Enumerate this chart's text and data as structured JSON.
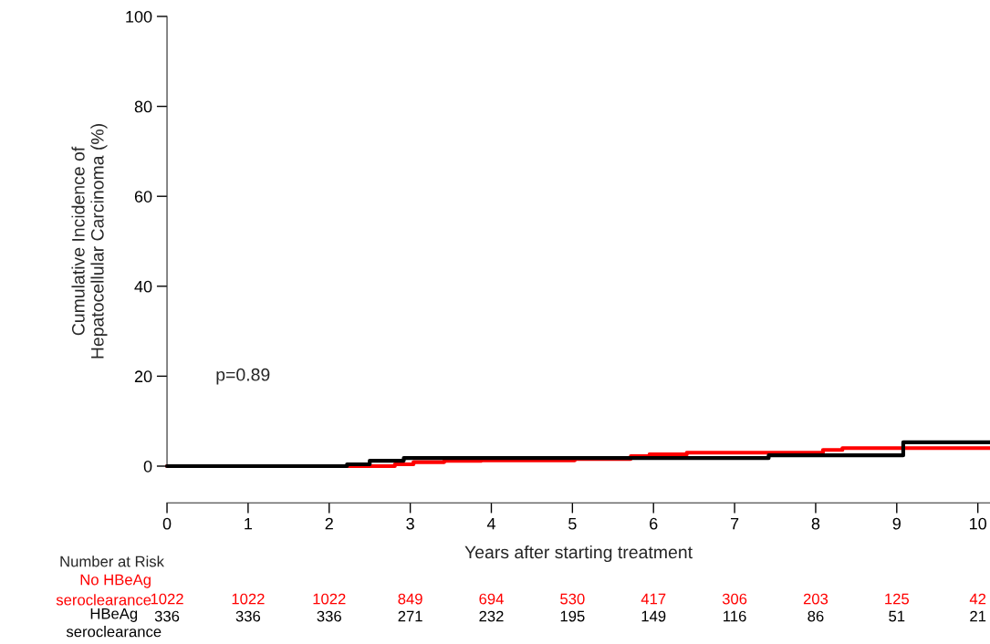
{
  "chart_data": {
    "type": "step",
    "xlabel": "Years after starting treatment",
    "ylabel": "Cumulative Incidence of\nHepatocellular Carcinoma (%)",
    "xlim": [
      0,
      10.15
    ],
    "ylim": [
      0,
      100
    ],
    "xticks": [
      0,
      1,
      2,
      3,
      4,
      5,
      6,
      7,
      8,
      9,
      10
    ],
    "yticks": [
      0,
      20,
      40,
      60,
      80,
      100
    ],
    "grid": false,
    "legend": false,
    "marker": "none",
    "line_style": "solid",
    "series": [
      {
        "color": "#ff0000",
        "x": [
          0,
          2.81,
          3.04,
          3.42,
          3.88,
          5.03,
          5.72,
          5.95,
          6.41,
          8.09,
          8.33,
          10.15
        ],
        "values": [
          0,
          0.4,
          0.9,
          1.2,
          1.3,
          1.6,
          2.2,
          2.6,
          3.0,
          3.6,
          4.0,
          4.0
        ]
      },
      {
        "color": "#000000",
        "x": [
          0,
          2.22,
          2.5,
          2.92,
          7.42,
          9.08,
          10.15
        ],
        "values": [
          0,
          0.4,
          1.2,
          1.8,
          2.4,
          5.3,
          5.3
        ]
      }
    ],
    "annotations": [
      "Number at Risk",
      "p=0.89",
      "No HBeAg\nseroclearance",
      "HBeAg\nseroclearance",
      "1022",
      "1022",
      "1022",
      "849",
      "694",
      "530",
      "417",
      "306",
      "203",
      "125",
      "42",
      "336",
      "336",
      "336",
      "271",
      "232",
      "195",
      "149",
      "116",
      "86",
      "51",
      "21"
    ]
  }
}
